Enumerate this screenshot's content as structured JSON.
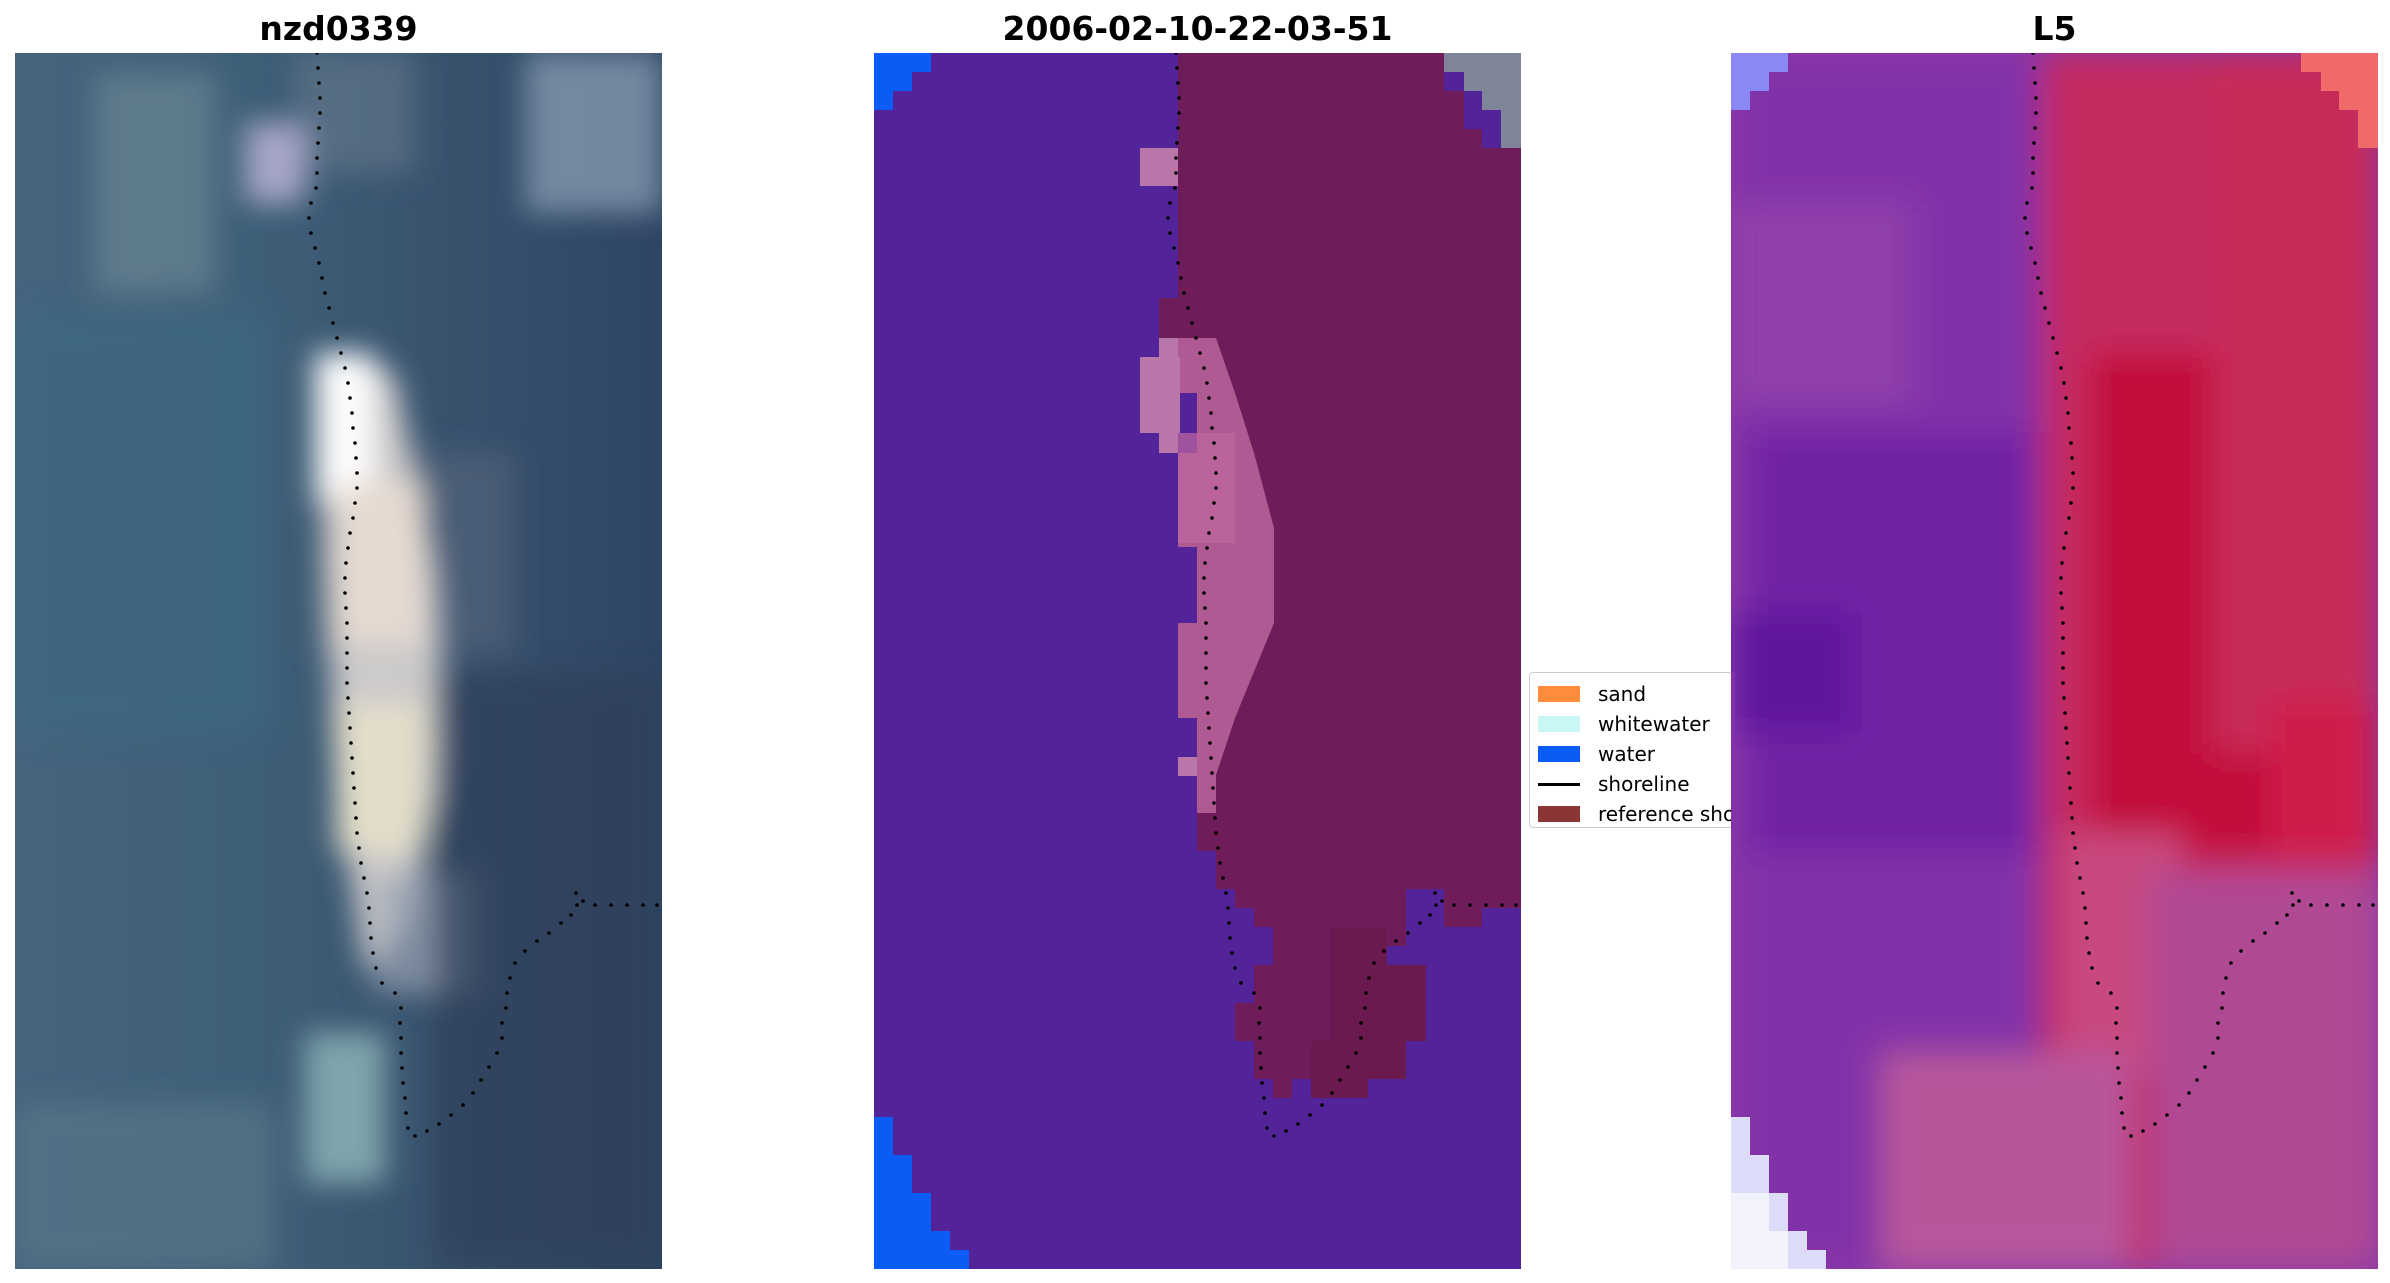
{
  "titles": {
    "left": "nzd0339",
    "middle": "2006-02-10-22-03-51",
    "right": "L5"
  },
  "legend": {
    "items": [
      {
        "label": "sand",
        "color": "#ff8c3b",
        "kind": "patch"
      },
      {
        "label": "whitewater",
        "color": "#c8f7f5",
        "kind": "patch"
      },
      {
        "label": "water",
        "color": "#0a5cf5",
        "kind": "patch"
      },
      {
        "label": "shoreline",
        "color": "#000000",
        "kind": "line"
      },
      {
        "label": "reference shoreline",
        "color": "#8b3535",
        "kind": "patch"
      }
    ]
  },
  "colors": {
    "rgb_water": "#3c5a78",
    "rgb_beach": "#f0eef6",
    "classified_background": "#53239a",
    "classified_land": "#6e1d5a",
    "classified_sand_overlay": "#b05a94",
    "classified_water_edge": "#0a5cf5",
    "index_low": "#7a2aa8",
    "index_high": "#c8103a",
    "index_white": "#f0f0ff",
    "shoreline_dots": "#000000"
  }
}
